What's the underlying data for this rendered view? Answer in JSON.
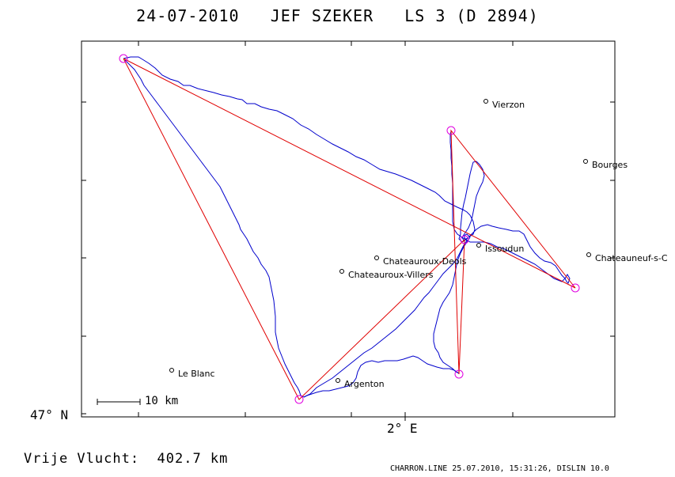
{
  "header": {
    "date": "24-07-2010",
    "pilot": "JEF SZEKER",
    "glider": "LS 3 (D 2894)"
  },
  "axes": {
    "y_label": "47° N",
    "x_label": "2° E"
  },
  "scale_bar": {
    "label": "10 km"
  },
  "places": [
    {
      "name": "Vierzon"
    },
    {
      "name": "Bourges"
    },
    {
      "name": "Issoudun"
    },
    {
      "name": "Chateauroux-Deols"
    },
    {
      "name": "Chateauroux-Villers"
    },
    {
      "name": "Chateauneuf-s-C"
    },
    {
      "name": "Le Blanc"
    },
    {
      "name": "Argenton"
    }
  ],
  "summary": {
    "distance_text": "Vrije Vlucht:  402.7 km"
  },
  "footer": {
    "text": "CHARRON.LINE 25.07.2010, 15:31:26, DISLIN 10.0"
  },
  "colors": {
    "track": "#0000cc",
    "task_line": "#e00000",
    "turnpoint": "#e000e0",
    "frame": "#000000"
  }
}
